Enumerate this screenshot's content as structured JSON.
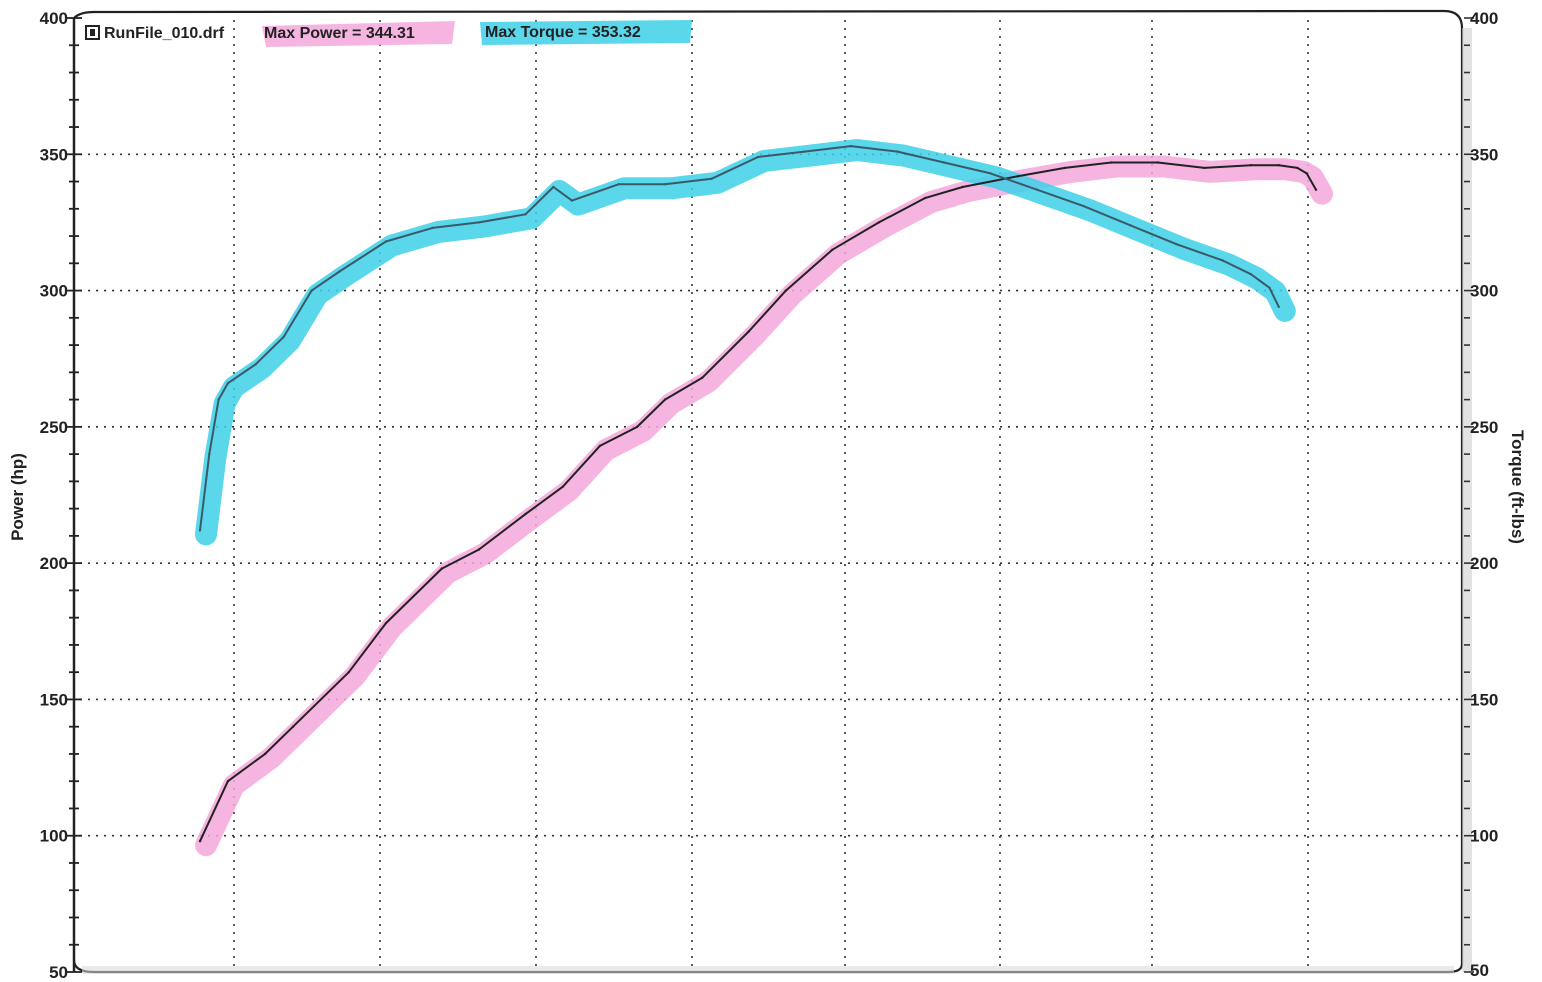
{
  "chart_data": {
    "type": "line",
    "title": "",
    "left_axis": {
      "label": "Power (hp)",
      "ylim": [
        50,
        400
      ],
      "ticks": [
        50,
        100,
        150,
        200,
        250,
        300,
        350,
        400
      ]
    },
    "right_axis": {
      "label": "Torque (ft-lbs)",
      "ylim": [
        50,
        400
      ],
      "ticks": [
        50,
        100,
        150,
        200,
        250,
        300,
        350,
        400
      ]
    },
    "grid": true,
    "legend": {
      "file_label": "RunFile_010.drf",
      "power_label": "Max Power = 344.31",
      "torque_label": "Max Torque = 353.32",
      "placement": "top-left"
    },
    "series": [
      {
        "name": "Max Power",
        "axis": "left",
        "color": "#222222",
        "highlight": "#f4a8dc",
        "x": [
          0.0,
          0.3,
          0.7,
          1.0,
          1.6,
          2.0,
          2.6,
          3.0,
          3.5,
          3.9,
          4.3,
          4.7,
          5.0,
          5.4,
          5.9,
          6.3,
          6.8,
          7.3,
          7.8,
          8.2,
          8.8,
          9.3,
          9.8,
          10.3,
          10.8,
          11.3,
          11.6,
          11.8,
          11.9,
          12.0
        ],
        "values": [
          98,
          120,
          130,
          140,
          160,
          178,
          198,
          205,
          218,
          228,
          243,
          250,
          260,
          268,
          285,
          300,
          315,
          325,
          334,
          338,
          342,
          345,
          347,
          347,
          345,
          346,
          346,
          345,
          343,
          337
        ]
      },
      {
        "name": "Max Torque",
        "axis": "right",
        "color": "#3a5a6a",
        "highlight": "#3dd0e8",
        "x": [
          0.0,
          0.1,
          0.2,
          0.3,
          0.6,
          0.9,
          1.2,
          1.5,
          2.0,
          2.5,
          3.0,
          3.5,
          3.8,
          4.0,
          4.5,
          5.0,
          5.5,
          6.0,
          6.5,
          7.0,
          7.5,
          8.0,
          8.5,
          9.0,
          9.5,
          10.0,
          10.5,
          11.0,
          11.3,
          11.5,
          11.6
        ],
        "values": [
          212,
          240,
          260,
          266,
          273,
          283,
          300,
          307,
          318,
          323,
          325,
          328,
          338,
          333,
          339,
          339,
          341,
          349,
          351,
          353,
          351,
          347,
          343,
          337,
          331,
          324,
          317,
          311,
          306,
          301,
          294
        ]
      }
    ]
  }
}
